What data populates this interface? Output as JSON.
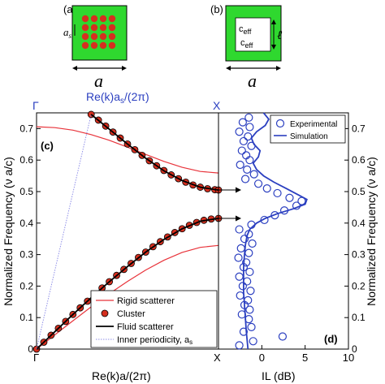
{
  "figure": {
    "panels": {
      "a": {
        "label": "(a)",
        "dim_label": "a",
        "inner_dim_label": "a",
        "inner_dim_subscript": "s",
        "colors": {
          "background": "#2fd82f",
          "scatterer": "#d52f1f",
          "border": "#000000"
        }
      },
      "b": {
        "label": "(b)",
        "dim_label": "a",
        "inner_text_1": "c",
        "inner_text_1_sub": "eff",
        "inner_text_2": "c",
        "inner_text_2_sub": "eff",
        "inner_dim_label": "ℓ",
        "colors": {
          "background": "#2fd82f",
          "inner": "#ffffff",
          "border": "#000000"
        }
      }
    }
  },
  "chart_data": [
    {
      "id": "c",
      "type": "line",
      "panel_label": "(c)",
      "xlabel": "Re(k)a/(2π)",
      "top_xlabel": "Re(k)a",
      "top_xlabel_sub": "s",
      "top_xlabel_tail": "/(2π)",
      "ylabel": "Normalized Frequency (ν a/c)",
      "xlim": [
        0,
        0.5
      ],
      "ylim": [
        0,
        0.75
      ],
      "x_ticks": [
        "Γ",
        "X"
      ],
      "top_ticks": [
        "Γ",
        "X"
      ],
      "y_ticks": [
        0,
        0.1,
        0.2,
        0.3,
        0.4,
        0.5,
        0.6,
        0.7
      ],
      "grid": false,
      "legend_position": "bottom-right",
      "legend": [
        "Rigid scatterer",
        "Cluster",
        "Fluid scatterer",
        "Inner periodicity, a_s"
      ],
      "series": [
        {
          "name": "Rigid scatterer",
          "color": "#e8333a",
          "style": "solid",
          "segments": [
            {
              "x": [
                0,
                0.05,
                0.1,
                0.15,
                0.2,
                0.25,
                0.3,
                0.35,
                0.4,
                0.45,
                0.5
              ],
              "y": [
                0,
                0.045,
                0.09,
                0.134,
                0.176,
                0.215,
                0.251,
                0.282,
                0.307,
                0.323,
                0.329
              ]
            },
            {
              "x": [
                0,
                0.05,
                0.1,
                0.15,
                0.2,
                0.25,
                0.3,
                0.35,
                0.4,
                0.45,
                0.5
              ],
              "y": [
                0.706,
                0.703,
                0.695,
                0.681,
                0.663,
                0.641,
                0.618,
                0.596,
                0.577,
                0.564,
                0.559
              ]
            }
          ]
        },
        {
          "name": "Cluster",
          "color": "#d52f1f",
          "style": "markers",
          "segments": [
            {
              "x": [
                0,
                0.02,
                0.04,
                0.06,
                0.08,
                0.1,
                0.12,
                0.14,
                0.16,
                0.18,
                0.2,
                0.22,
                0.24,
                0.26,
                0.28,
                0.3,
                0.32,
                0.34,
                0.36,
                0.38,
                0.4,
                0.42,
                0.44,
                0.46,
                0.48,
                0.5
              ],
              "y": [
                0,
                0.022,
                0.044,
                0.066,
                0.088,
                0.11,
                0.131,
                0.152,
                0.173,
                0.194,
                0.214,
                0.234,
                0.253,
                0.272,
                0.291,
                0.308,
                0.325,
                0.341,
                0.356,
                0.37,
                0.382,
                0.393,
                0.402,
                0.409,
                0.413,
                0.415
              ]
            },
            {
              "x": [
                0.15,
                0.17,
                0.19,
                0.21,
                0.23,
                0.25,
                0.27,
                0.29,
                0.31,
                0.33,
                0.35,
                0.37,
                0.39,
                0.41,
                0.43,
                0.45,
                0.47,
                0.49,
                0.5
              ],
              "y": [
                0.745,
                0.727,
                0.708,
                0.689,
                0.67,
                0.651,
                0.633,
                0.615,
                0.598,
                0.582,
                0.567,
                0.553,
                0.541,
                0.53,
                0.521,
                0.514,
                0.509,
                0.506,
                0.505
              ]
            }
          ]
        },
        {
          "name": "Fluid scatterer",
          "color": "#000000",
          "style": "solid",
          "segments": [
            {
              "x": [
                0,
                0.05,
                0.1,
                0.15,
                0.2,
                0.25,
                0.3,
                0.35,
                0.4,
                0.45,
                0.5
              ],
              "y": [
                0,
                0.055,
                0.11,
                0.163,
                0.214,
                0.262,
                0.308,
                0.348,
                0.382,
                0.406,
                0.415
              ]
            },
            {
              "x": [
                0.15,
                0.2,
                0.25,
                0.3,
                0.35,
                0.4,
                0.45,
                0.5
              ],
              "y": [
                0.745,
                0.698,
                0.651,
                0.606,
                0.566,
                0.535,
                0.514,
                0.505
              ]
            }
          ]
        },
        {
          "name": "Inner periodicity, a_s",
          "color": "#8f8fe8",
          "style": "dotted",
          "segments": [
            {
              "x": [
                0,
                0.15
              ],
              "y": [
                0,
                0.745
              ]
            },
            {
              "x": [
                0.15,
                0.15
              ],
              "y": [
                0.745,
                0.745
              ]
            }
          ]
        }
      ],
      "arrows": [
        {
          "from": [
            0.5,
            0.505
          ],
          "to_panel": "d"
        },
        {
          "from": [
            0.5,
            0.415
          ],
          "to_panel": "d"
        }
      ]
    },
    {
      "id": "d",
      "type": "scatter",
      "panel_label": "(d)",
      "xlabel": "IL (dB)",
      "ylabel": "Normalized Frequency (ν a/c)",
      "xlim": [
        -5,
        10
      ],
      "ylim": [
        0,
        0.75
      ],
      "x_ticks": [
        0,
        5,
        10
      ],
      "y_ticks": [
        0,
        0.1,
        0.2,
        0.3,
        0.4,
        0.5,
        0.6,
        0.7
      ],
      "grid": false,
      "legend_position": "top-right",
      "legend": [
        "Experimental",
        "Simulation"
      ],
      "series": [
        {
          "name": "Experimental",
          "color": "#2b3fc0",
          "style": "open-circles",
          "points": [
            [
              -1.5,
              0.735
            ],
            [
              -2.2,
              0.72
            ],
            [
              -1.4,
              0.705
            ],
            [
              -2.6,
              0.69
            ],
            [
              -1.6,
              0.675
            ],
            [
              -2.1,
              0.66
            ],
            [
              -1.2,
              0.645
            ],
            [
              -2.3,
              0.63
            ],
            [
              -1.8,
              0.615
            ],
            [
              -1.4,
              0.6
            ],
            [
              -2.5,
              0.585
            ],
            [
              -1.7,
              0.57
            ],
            [
              -0.9,
              0.555
            ],
            [
              -1.9,
              0.54
            ],
            [
              -0.4,
              0.525
            ],
            [
              0.6,
              0.51
            ],
            [
              1.8,
              0.495
            ],
            [
              3.2,
              0.48
            ],
            [
              4.6,
              0.47
            ],
            [
              4.0,
              0.455
            ],
            [
              2.6,
              0.44
            ],
            [
              1.5,
              0.425
            ],
            [
              0.3,
              0.41
            ],
            [
              -1.2,
              0.395
            ],
            [
              -2.6,
              0.38
            ],
            [
              -1.5,
              0.365
            ],
            [
              -2.0,
              0.35
            ],
            [
              -1.1,
              0.335
            ],
            [
              -2.4,
              0.32
            ],
            [
              -1.5,
              0.305
            ],
            [
              -2.7,
              0.29
            ],
            [
              -1.8,
              0.275
            ],
            [
              -2.1,
              0.26
            ],
            [
              -1.4,
              0.245
            ],
            [
              -2.6,
              0.23
            ],
            [
              -1.7,
              0.215
            ],
            [
              -2.2,
              0.2
            ],
            [
              -1.3,
              0.185
            ],
            [
              -2.5,
              0.17
            ],
            [
              -1.6,
              0.155
            ],
            [
              -2.0,
              0.14
            ],
            [
              -1.4,
              0.125
            ],
            [
              -2.3,
              0.11
            ],
            [
              -1.5,
              0.095
            ],
            [
              -1.2,
              0.07
            ],
            [
              -2.1,
              0.055
            ],
            [
              2.4,
              0.04
            ],
            [
              -1.0,
              0.025
            ],
            [
              -2.6,
              0.012
            ]
          ]
        },
        {
          "name": "Simulation",
          "color": "#2b3fc0",
          "style": "solid",
          "points": [
            [
              0.2,
              0.75
            ],
            [
              0.8,
              0.73
            ],
            [
              0.4,
              0.71
            ],
            [
              -0.6,
              0.69
            ],
            [
              -1.2,
              0.67
            ],
            [
              -0.9,
              0.65
            ],
            [
              -0.2,
              0.63
            ],
            [
              -0.4,
              0.61
            ],
            [
              -1.0,
              0.59
            ],
            [
              -0.6,
              0.57
            ],
            [
              0.2,
              0.55
            ],
            [
              1.4,
              0.53
            ],
            [
              2.8,
              0.51
            ],
            [
              4.2,
              0.49
            ],
            [
              5.2,
              0.475
            ],
            [
              5.0,
              0.46
            ],
            [
              3.6,
              0.445
            ],
            [
              1.8,
              0.43
            ],
            [
              0.4,
              0.415
            ],
            [
              -0.6,
              0.4
            ],
            [
              -1.4,
              0.38
            ],
            [
              -1.7,
              0.36
            ],
            [
              -1.9,
              0.33
            ],
            [
              -2.0,
              0.3
            ],
            [
              -2.1,
              0.26
            ],
            [
              -2.1,
              0.22
            ],
            [
              -2.1,
              0.18
            ],
            [
              -2.0,
              0.14
            ],
            [
              -1.9,
              0.1
            ],
            [
              -1.8,
              0.06
            ],
            [
              -1.7,
              0.03
            ],
            [
              -1.6,
              0.0
            ]
          ]
        }
      ]
    }
  ]
}
